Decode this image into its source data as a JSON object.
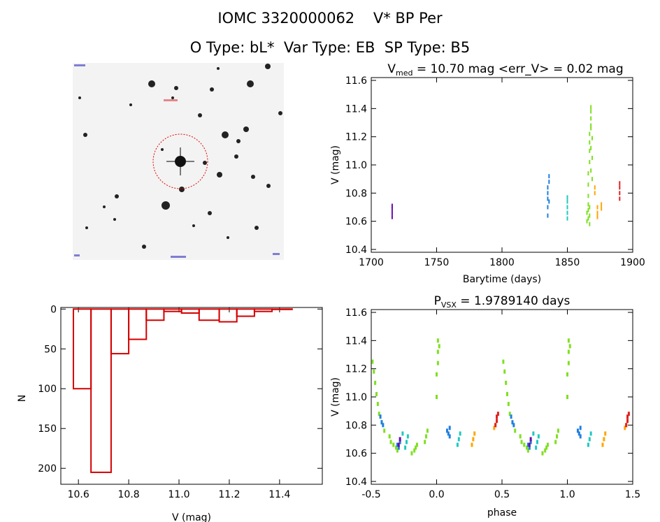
{
  "header": {
    "title": "IOMC 3320000062    V* BP Per",
    "subtitle": "O Type: bL*  Var Type: EB  SP Type: B5"
  },
  "colors": {
    "hist": "#d40000",
    "axis": "#000000",
    "circle": "#e00000"
  },
  "chart_data": [
    {
      "id": "finder",
      "type": "image",
      "description_labels": []
    },
    {
      "id": "lightcurve",
      "type": "scatter",
      "title_main": "V",
      "title_sub": "med",
      "title_rest": " = 10.70 mag <err_V> = 0.02 mag",
      "xlabel": "Barytime (days)",
      "ylabel": "V (mag)",
      "xlim": [
        1700,
        1900
      ],
      "ylim": [
        11.62,
        10.38
      ],
      "xticks": [
        "1700",
        "1750",
        "1800",
        "1850",
        "1900"
      ],
      "yticks": [
        "10.4",
        "10.6",
        "10.8",
        "11.0",
        "11.2",
        "11.4",
        "11.6"
      ],
      "series": [
        {
          "color": "#6a0dad",
          "x": [
            1716,
            1716,
            1716,
            1716
          ],
          "y": [
            10.63,
            10.66,
            10.69,
            10.71
          ]
        },
        {
          "color": "#1e7fe0",
          "x": [
            1835,
            1835,
            1835,
            1835,
            1835,
            1836,
            1836,
            1836
          ],
          "y": [
            10.64,
            10.7,
            10.76,
            10.8,
            10.84,
            10.88,
            10.92,
            10.74
          ]
        },
        {
          "color": "#20c8c0",
          "x": [
            1850,
            1850,
            1850,
            1850,
            1850
          ],
          "y": [
            10.62,
            10.66,
            10.7,
            10.74,
            10.77
          ]
        },
        {
          "color": "#7fe020",
          "x": [
            1865,
            1865,
            1866,
            1866,
            1866,
            1866,
            1867,
            1867,
            1867,
            1867,
            1868,
            1868,
            1868,
            1868,
            1868,
            1869,
            1869,
            1866,
            1866,
            1867,
            1867,
            1867,
            1868,
            1868,
            1869
          ],
          "y": [
            10.6,
            10.66,
            10.72,
            10.78,
            10.86,
            10.94,
            11.02,
            11.1,
            11.16,
            11.22,
            11.28,
            11.33,
            11.38,
            11.41,
            11.26,
            11.19,
            11.05,
            10.62,
            10.68,
            10.58,
            10.64,
            10.7,
            10.96,
            11.12,
            10.9
          ]
        },
        {
          "color": "#ffa500",
          "x": [
            1873,
            1873,
            1873,
            1876,
            1876,
            1871,
            1871
          ],
          "y": [
            10.63,
            10.66,
            10.7,
            10.69,
            10.72,
            10.8,
            10.84
          ]
        },
        {
          "color": "#e02020",
          "x": [
            1890,
            1890,
            1890,
            1890
          ],
          "y": [
            10.76,
            10.8,
            10.84,
            10.87
          ]
        }
      ]
    },
    {
      "id": "histogram",
      "type": "bar",
      "xlabel": "V (mag)",
      "ylabel": "N",
      "xlim": [
        10.53,
        11.57
      ],
      "ylim": [
        -2,
        220
      ],
      "xticks": [
        "10.6",
        "10.8",
        "11.0",
        "11.2",
        "11.4"
      ],
      "yticks": [
        "0",
        "50",
        "100",
        "150",
        "200"
      ],
      "bin_edges": [
        10.58,
        10.65,
        10.73,
        10.8,
        10.87,
        10.94,
        11.01,
        11.08,
        11.16,
        11.23,
        11.3,
        11.37,
        11.45
      ],
      "values": [
        100,
        205,
        56,
        38,
        14,
        3,
        5,
        14,
        16,
        9,
        3,
        0
      ]
    },
    {
      "id": "phased",
      "type": "scatter",
      "title_main": "P",
      "title_sub": "VSX",
      "title_rest": " = 1.9789140 days",
      "xlabel": "phase",
      "ylabel": "V (mag)",
      "xlim": [
        -0.5,
        1.5
      ],
      "ylim": [
        11.62,
        10.38
      ],
      "xticks": [
        "-0.5",
        "0.0",
        "0.5",
        "1.0",
        "1.5"
      ],
      "yticks": [
        "10.4",
        "10.6",
        "10.8",
        "11.0",
        "11.2",
        "11.4",
        "11.6"
      ],
      "period_shift": 1.0,
      "series": [
        {
          "color": "#7fe020",
          "x": [
            -0.49,
            -0.48,
            -0.47,
            -0.46,
            -0.45,
            -0.44,
            -0.42,
            -0.4,
            -0.36,
            -0.35,
            -0.33,
            -0.31,
            -0.3,
            -0.29,
            -0.28,
            -0.19,
            -0.17,
            -0.16,
            -0.15,
            0.0,
            0.0,
            0.01,
            0.01,
            0.01,
            0.02,
            -0.08,
            -0.07,
            -0.09
          ],
          "y": [
            11.25,
            11.18,
            11.1,
            11.02,
            10.95,
            10.88,
            10.82,
            10.76,
            10.72,
            10.68,
            10.66,
            10.64,
            10.62,
            10.64,
            10.68,
            10.6,
            10.62,
            10.64,
            10.66,
            11.0,
            11.16,
            11.24,
            11.32,
            11.4,
            11.36,
            10.72,
            10.76,
            10.68
          ]
        },
        {
          "color": "#1e7fe0",
          "x": [
            0.08,
            0.09,
            0.1,
            0.1,
            -0.43,
            -0.42,
            -0.41,
            -0.3,
            -0.29,
            -0.28
          ],
          "y": [
            10.76,
            10.74,
            10.72,
            10.78,
            10.86,
            10.82,
            10.8,
            10.66,
            10.64,
            10.68
          ]
        },
        {
          "color": "#20c8c0",
          "x": [
            0.16,
            0.17,
            0.18,
            -0.24,
            -0.23,
            -0.22,
            -0.26
          ],
          "y": [
            10.66,
            10.7,
            10.74,
            10.64,
            10.68,
            10.72,
            10.74
          ]
        },
        {
          "color": "#6a0dad",
          "x": [
            -0.29,
            -0.28
          ],
          "y": [
            10.66,
            10.7
          ]
        },
        {
          "color": "#ffa500",
          "x": [
            0.27,
            0.28,
            0.29,
            0.44,
            0.45
          ],
          "y": [
            10.66,
            10.7,
            10.74,
            10.78,
            10.8
          ]
        },
        {
          "color": "#e02020",
          "x": [
            0.45,
            0.46,
            0.46,
            0.47
          ],
          "y": [
            10.8,
            10.83,
            10.86,
            10.88
          ]
        }
      ]
    }
  ]
}
